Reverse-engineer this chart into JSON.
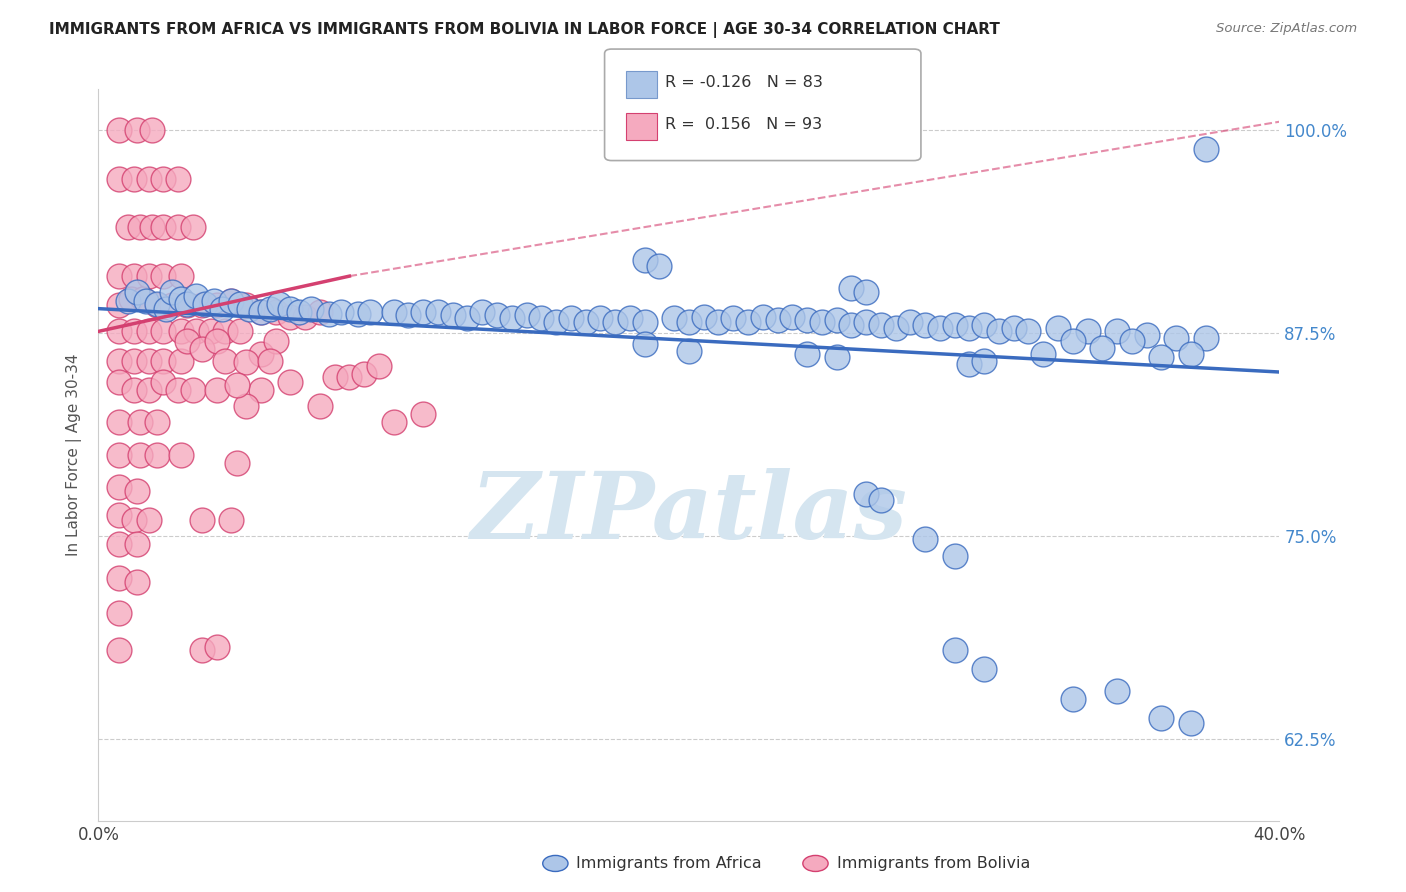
{
  "title": "IMMIGRANTS FROM AFRICA VS IMMIGRANTS FROM BOLIVIA IN LABOR FORCE | AGE 30-34 CORRELATION CHART",
  "source": "Source: ZipAtlas.com",
  "ylabel": "In Labor Force | Age 30-34",
  "yticks": [
    62.5,
    75.0,
    87.5,
    100.0
  ],
  "ytick_labels": [
    "62.5%",
    "75.0%",
    "87.5%",
    "100.0%"
  ],
  "xlim": [
    0.0,
    0.4
  ],
  "ylim": [
    0.575,
    1.025
  ],
  "legend_blue_r": "-0.126",
  "legend_blue_n": "83",
  "legend_pink_r": "0.156",
  "legend_pink_n": "93",
  "blue_color": "#adc6e8",
  "pink_color": "#f5aabf",
  "blue_line_color": "#3a6bbf",
  "pink_line_color": "#d44070",
  "watermark_text": "ZIPatlas",
  "watermark_color": "#d5e5f0",
  "blue_trend": [
    0.0,
    0.4,
    0.89,
    0.851
  ],
  "pink_trend_solid": [
    0.0,
    0.085,
    0.876,
    0.91
  ],
  "pink_trend_dashed": [
    0.085,
    0.4,
    0.91,
    1.005
  ],
  "blue_points": [
    [
      0.01,
      0.895
    ],
    [
      0.013,
      0.9
    ],
    [
      0.016,
      0.895
    ],
    [
      0.02,
      0.893
    ],
    [
      0.023,
      0.89
    ],
    [
      0.025,
      0.9
    ],
    [
      0.028,
      0.896
    ],
    [
      0.03,
      0.893
    ],
    [
      0.033,
      0.898
    ],
    [
      0.036,
      0.893
    ],
    [
      0.039,
      0.895
    ],
    [
      0.042,
      0.89
    ],
    [
      0.045,
      0.895
    ],
    [
      0.048,
      0.893
    ],
    [
      0.051,
      0.89
    ],
    [
      0.055,
      0.888
    ],
    [
      0.058,
      0.89
    ],
    [
      0.061,
      0.893
    ],
    [
      0.065,
      0.89
    ],
    [
      0.068,
      0.888
    ],
    [
      0.072,
      0.89
    ],
    [
      0.078,
      0.887
    ],
    [
      0.082,
      0.888
    ],
    [
      0.088,
      0.887
    ],
    [
      0.092,
      0.888
    ],
    [
      0.1,
      0.888
    ],
    [
      0.105,
      0.886
    ],
    [
      0.11,
      0.888
    ],
    [
      0.115,
      0.888
    ],
    [
      0.12,
      0.886
    ],
    [
      0.125,
      0.884
    ],
    [
      0.13,
      0.888
    ],
    [
      0.135,
      0.886
    ],
    [
      0.14,
      0.884
    ],
    [
      0.145,
      0.886
    ],
    [
      0.15,
      0.884
    ],
    [
      0.155,
      0.882
    ],
    [
      0.16,
      0.884
    ],
    [
      0.165,
      0.882
    ],
    [
      0.17,
      0.884
    ],
    [
      0.175,
      0.882
    ],
    [
      0.18,
      0.884
    ],
    [
      0.185,
      0.882
    ],
    [
      0.195,
      0.884
    ],
    [
      0.2,
      0.882
    ],
    [
      0.205,
      0.885
    ],
    [
      0.21,
      0.882
    ],
    [
      0.215,
      0.884
    ],
    [
      0.22,
      0.882
    ],
    [
      0.225,
      0.885
    ],
    [
      0.23,
      0.883
    ],
    [
      0.235,
      0.885
    ],
    [
      0.24,
      0.883
    ],
    [
      0.245,
      0.882
    ],
    [
      0.25,
      0.883
    ],
    [
      0.255,
      0.88
    ],
    [
      0.26,
      0.882
    ],
    [
      0.265,
      0.88
    ],
    [
      0.27,
      0.878
    ],
    [
      0.275,
      0.882
    ],
    [
      0.28,
      0.88
    ],
    [
      0.285,
      0.878
    ],
    [
      0.29,
      0.88
    ],
    [
      0.295,
      0.878
    ],
    [
      0.3,
      0.88
    ],
    [
      0.305,
      0.876
    ],
    [
      0.31,
      0.878
    ],
    [
      0.315,
      0.876
    ],
    [
      0.325,
      0.878
    ],
    [
      0.335,
      0.876
    ],
    [
      0.345,
      0.876
    ],
    [
      0.355,
      0.874
    ],
    [
      0.365,
      0.872
    ],
    [
      0.375,
      0.872
    ],
    [
      0.185,
      0.92
    ],
    [
      0.19,
      0.916
    ],
    [
      0.255,
      0.903
    ],
    [
      0.26,
      0.9
    ],
    [
      0.185,
      0.868
    ],
    [
      0.2,
      0.864
    ],
    [
      0.24,
      0.862
    ],
    [
      0.25,
      0.86
    ],
    [
      0.295,
      0.856
    ],
    [
      0.33,
      0.87
    ],
    [
      0.34,
      0.866
    ],
    [
      0.35,
      0.87
    ],
    [
      0.36,
      0.86
    ],
    [
      0.37,
      0.862
    ],
    [
      0.32,
      0.862
    ],
    [
      0.3,
      0.858
    ],
    [
      0.26,
      0.776
    ],
    [
      0.265,
      0.772
    ],
    [
      0.28,
      0.748
    ],
    [
      0.29,
      0.738
    ],
    [
      0.33,
      0.65
    ],
    [
      0.345,
      0.655
    ],
    [
      0.36,
      0.638
    ],
    [
      0.37,
      0.635
    ],
    [
      0.29,
      0.68
    ],
    [
      0.3,
      0.668
    ],
    [
      0.375,
      0.988
    ]
  ],
  "pink_points": [
    [
      0.007,
      1.0
    ],
    [
      0.013,
      1.0
    ],
    [
      0.018,
      1.0
    ],
    [
      0.007,
      0.97
    ],
    [
      0.012,
      0.97
    ],
    [
      0.017,
      0.97
    ],
    [
      0.022,
      0.97
    ],
    [
      0.027,
      0.97
    ],
    [
      0.01,
      0.94
    ],
    [
      0.014,
      0.94
    ],
    [
      0.018,
      0.94
    ],
    [
      0.022,
      0.94
    ],
    [
      0.027,
      0.94
    ],
    [
      0.032,
      0.94
    ],
    [
      0.007,
      0.91
    ],
    [
      0.012,
      0.91
    ],
    [
      0.017,
      0.91
    ],
    [
      0.022,
      0.91
    ],
    [
      0.028,
      0.91
    ],
    [
      0.007,
      0.892
    ],
    [
      0.011,
      0.896
    ],
    [
      0.015,
      0.896
    ],
    [
      0.02,
      0.892
    ],
    [
      0.025,
      0.892
    ],
    [
      0.03,
      0.892
    ],
    [
      0.035,
      0.892
    ],
    [
      0.04,
      0.892
    ],
    [
      0.045,
      0.895
    ],
    [
      0.05,
      0.892
    ],
    [
      0.055,
      0.888
    ],
    [
      0.06,
      0.888
    ],
    [
      0.065,
      0.885
    ],
    [
      0.07,
      0.885
    ],
    [
      0.075,
      0.888
    ],
    [
      0.007,
      0.876
    ],
    [
      0.012,
      0.876
    ],
    [
      0.017,
      0.876
    ],
    [
      0.022,
      0.876
    ],
    [
      0.028,
      0.876
    ],
    [
      0.033,
      0.876
    ],
    [
      0.038,
      0.876
    ],
    [
      0.043,
      0.876
    ],
    [
      0.048,
      0.876
    ],
    [
      0.007,
      0.858
    ],
    [
      0.012,
      0.858
    ],
    [
      0.017,
      0.858
    ],
    [
      0.022,
      0.858
    ],
    [
      0.028,
      0.858
    ],
    [
      0.007,
      0.845
    ],
    [
      0.012,
      0.84
    ],
    [
      0.017,
      0.84
    ],
    [
      0.022,
      0.845
    ],
    [
      0.027,
      0.84
    ],
    [
      0.032,
      0.84
    ],
    [
      0.04,
      0.84
    ],
    [
      0.007,
      0.82
    ],
    [
      0.014,
      0.82
    ],
    [
      0.02,
      0.82
    ],
    [
      0.007,
      0.8
    ],
    [
      0.014,
      0.8
    ],
    [
      0.02,
      0.8
    ],
    [
      0.028,
      0.8
    ],
    [
      0.007,
      0.78
    ],
    [
      0.013,
      0.778
    ],
    [
      0.007,
      0.763
    ],
    [
      0.012,
      0.76
    ],
    [
      0.017,
      0.76
    ],
    [
      0.007,
      0.745
    ],
    [
      0.013,
      0.745
    ],
    [
      0.007,
      0.724
    ],
    [
      0.013,
      0.722
    ],
    [
      0.007,
      0.703
    ],
    [
      0.007,
      0.68
    ],
    [
      0.055,
      0.84
    ],
    [
      0.065,
      0.845
    ],
    [
      0.08,
      0.848
    ],
    [
      0.085,
      0.848
    ],
    [
      0.09,
      0.85
    ],
    [
      0.03,
      0.87
    ],
    [
      0.035,
      0.865
    ],
    [
      0.04,
      0.87
    ],
    [
      0.043,
      0.858
    ],
    [
      0.055,
      0.862
    ],
    [
      0.06,
      0.87
    ],
    [
      0.095,
      0.855
    ],
    [
      0.05,
      0.83
    ],
    [
      0.1,
      0.82
    ],
    [
      0.11,
      0.825
    ],
    [
      0.035,
      0.68
    ],
    [
      0.04,
      0.682
    ],
    [
      0.035,
      0.76
    ],
    [
      0.045,
      0.76
    ],
    [
      0.047,
      0.795
    ],
    [
      0.075,
      0.83
    ],
    [
      0.05,
      0.857
    ],
    [
      0.058,
      0.858
    ],
    [
      0.047,
      0.843
    ]
  ]
}
